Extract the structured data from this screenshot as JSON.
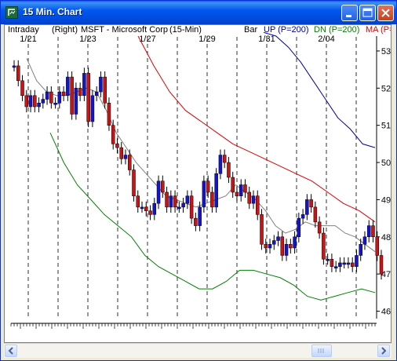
{
  "window": {
    "title": "15 Min. Chart",
    "app_icon": "chart-app-icon"
  },
  "colors": {
    "price_up": "#1414cc",
    "price_down": "#c81414",
    "price_wick": "#000000",
    "ma_short": "#808080",
    "ma_up": "#0000a0",
    "ma_down": "#008000",
    "ma_red": "#e00000"
  },
  "header": {
    "period": "Intraday",
    "scale_side": "(Right)",
    "security": "MSFT - Microsoft Corp",
    "interval": "(15-Min)",
    "study_type": "Bar",
    "up_label": "UP (P=200)",
    "dn_label": "DN (P=200)",
    "ma_label": "MA (P="
  },
  "chart_data": {
    "type": "line",
    "title": "",
    "xlabel": "",
    "ylabel": "",
    "ylim": [
      45.8,
      53.4
    ],
    "date_labels": [
      "1/21",
      "1/23",
      "1/27",
      "1/29",
      "1/31",
      "2/04"
    ],
    "yticks": [
      46,
      47,
      48,
      49,
      50,
      51,
      52,
      53
    ],
    "series": [
      {
        "name": "MSFT",
        "style": "bars",
        "values": [
          52.6,
          52.2,
          51.8,
          51.5,
          51.8,
          51.5,
          51.6,
          51.7,
          51.9,
          51.6,
          51.6,
          51.9,
          51.8,
          52.3,
          51.3,
          52.0,
          51.8,
          52.4,
          51.1,
          51.8,
          51.9,
          52.3,
          51.6,
          51.0,
          50.5,
          50.4,
          50.1,
          50.2,
          49.8,
          49.1,
          48.8,
          48.8,
          48.7,
          48.6,
          48.9,
          49.5,
          49.2,
          48.8,
          49.1,
          48.8,
          48.8,
          48.9,
          49.1,
          48.5,
          48.3,
          48.8,
          49.5,
          49.2,
          48.8,
          49.7,
          50.2,
          50.0,
          49.6,
          49.2,
          49.1,
          49.4,
          49.2,
          48.9,
          49.1,
          48.6,
          47.8,
          47.7,
          47.8,
          47.9,
          48.0,
          47.5,
          47.8,
          47.7,
          48.0,
          48.5,
          48.6,
          49.0,
          48.8,
          48.4,
          48.1,
          47.4,
          47.4,
          47.2,
          47.2,
          47.3,
          47.3,
          47.3,
          47.2,
          47.5,
          47.8,
          48.0,
          48.3,
          48.0,
          47.5,
          47.0
        ]
      },
      {
        "name": "UP",
        "style": "line",
        "values": [
          53.5,
          53.4,
          53.1,
          52.7,
          52.2,
          51.7,
          51.2,
          50.9,
          50.5,
          50.4
        ]
      },
      {
        "name": "DN",
        "style": "line",
        "values": [
          50.8,
          50.0,
          49.4,
          49.0,
          48.6,
          48.3,
          48.0,
          47.5,
          47.2,
          47.0,
          46.8,
          46.6,
          46.6,
          46.8,
          47.1,
          47.1,
          47.0,
          46.9,
          46.7,
          46.4,
          46.3,
          46.4,
          46.5,
          46.6,
          46.5
        ]
      },
      {
        "name": "MA",
        "style": "line",
        "values": [
          53.4,
          52.6,
          51.9,
          51.4,
          51.1,
          50.8,
          50.5,
          50.3,
          50.1,
          49.9,
          49.7,
          49.5,
          49.2,
          48.9,
          48.7,
          48.4
        ]
      },
      {
        "name": "MA short",
        "style": "line",
        "values": [
          52.8,
          52.2,
          51.9,
          51.8,
          51.8,
          51.9,
          52.0,
          51.9,
          51.4,
          50.8,
          50.4,
          50.0,
          49.7,
          49.4,
          49.1,
          49.0,
          48.9,
          48.8,
          48.9,
          49.0,
          49.1,
          49.4,
          49.2,
          49.0,
          48.7,
          48.3,
          48.1,
          48.2,
          48.4,
          48.3,
          48.3,
          48.3,
          48.1,
          48.0,
          47.8,
          47.6
        ]
      }
    ]
  },
  "scrollbar": {
    "left_icon": "arrow-left-icon",
    "right_icon": "arrow-right-icon"
  }
}
